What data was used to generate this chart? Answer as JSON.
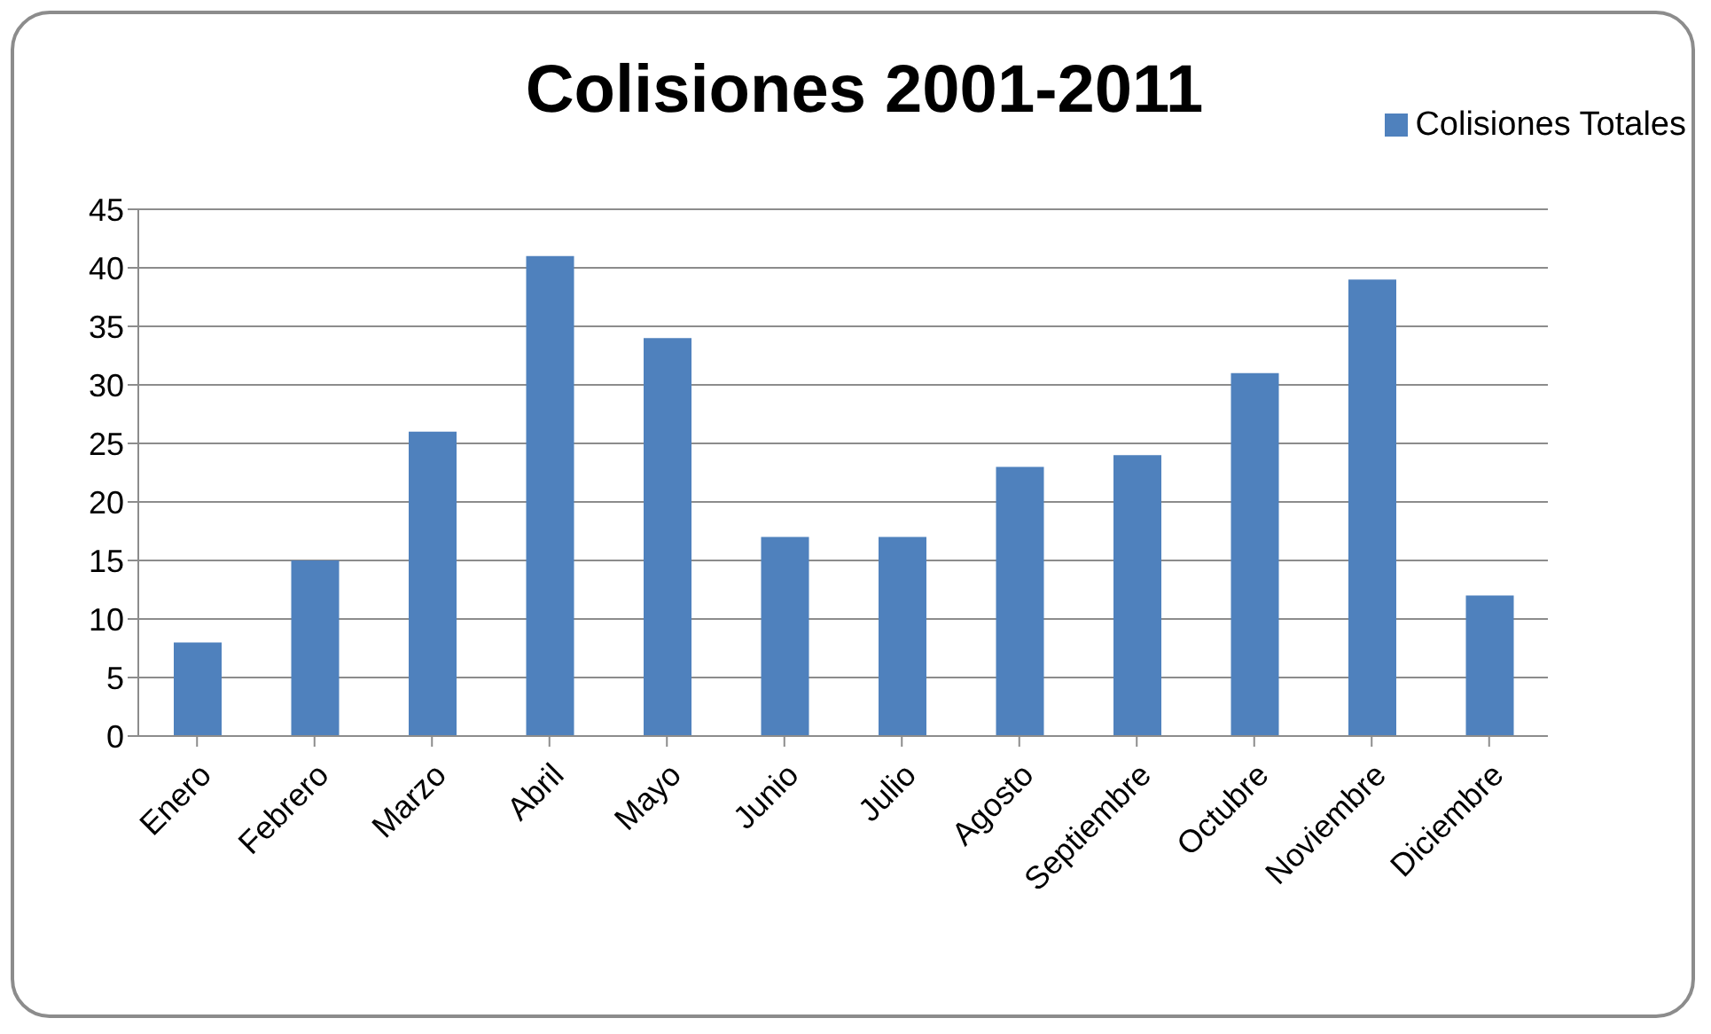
{
  "chart_data": {
    "type": "bar",
    "title": "Colisiones 2001-2011",
    "categories": [
      "Enero",
      "Febrero",
      "Marzo",
      "Abril",
      "Mayo",
      "Junio",
      "Julio",
      "Agosto",
      "Septiembre",
      "Octubre",
      "Noviembre",
      "Diciembre"
    ],
    "series": [
      {
        "name": "Colisiones Totales",
        "color": "#4f81bd",
        "values": [
          8,
          15,
          26,
          41,
          34,
          17,
          17,
          23,
          24,
          31,
          39,
          12
        ]
      }
    ],
    "ylim": [
      0,
      45
    ],
    "yticks": [
      0,
      5,
      10,
      15,
      20,
      25,
      30,
      35,
      40,
      45
    ],
    "grid": "y",
    "legend": "top right"
  }
}
